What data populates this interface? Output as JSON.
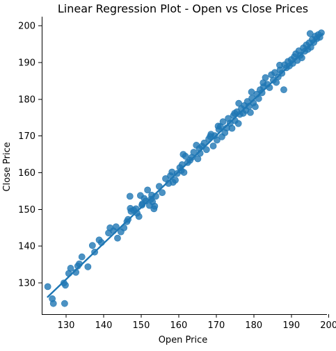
{
  "chart_data": {
    "type": "scatter",
    "title": "Linear Regression Plot - Open vs Close Prices",
    "xlabel": "Open Price",
    "ylabel": "Close Price",
    "xlim": [
      123.5,
      199.5
    ],
    "ylim": [
      121.5,
      202.5
    ],
    "x_ticks": [
      130,
      140,
      150,
      160,
      170,
      180,
      190,
      200
    ],
    "y_ticks": [
      130,
      140,
      150,
      160,
      170,
      180,
      190,
      200
    ],
    "grid": false,
    "colors": {
      "points": "#1f77b4",
      "regression_line": "#1f77b4"
    },
    "regression_line": {
      "x": [
        125.1,
        198.3
      ],
      "y": [
        126.2,
        197.8
      ]
    },
    "points": [
      [
        125.1,
        129.0
      ],
      [
        126.3,
        125.7
      ],
      [
        126.6,
        124.4
      ],
      [
        129.4,
        130.0
      ],
      [
        129.6,
        124.4
      ],
      [
        129.8,
        129.4
      ],
      [
        130.7,
        132.6
      ],
      [
        131.2,
        134.0
      ],
      [
        132.6,
        132.9
      ],
      [
        133.1,
        134.6
      ],
      [
        133.5,
        135.2
      ],
      [
        134.2,
        137.1
      ],
      [
        135.8,
        134.4
      ],
      [
        137.0,
        140.2
      ],
      [
        138.8,
        141.7
      ],
      [
        139.4,
        141.0
      ],
      [
        141.3,
        143.6
      ],
      [
        141.7,
        145.0
      ],
      [
        142.6,
        144.2
      ],
      [
        143.3,
        145.3
      ],
      [
        143.7,
        142.2
      ],
      [
        145.4,
        145.0
      ],
      [
        146.2,
        146.7
      ],
      [
        146.5,
        147.3
      ],
      [
        147.0,
        153.6
      ],
      [
        147.1,
        150.3
      ],
      [
        147.3,
        149.5
      ],
      [
        148.0,
        149.8
      ],
      [
        148.6,
        150.2
      ],
      [
        148.9,
        149.0
      ],
      [
        149.4,
        148.1
      ],
      [
        149.8,
        153.8
      ],
      [
        150.3,
        151.5
      ],
      [
        150.8,
        153.0
      ],
      [
        151.2,
        152.3
      ],
      [
        151.7,
        155.3
      ],
      [
        152.2,
        151.1
      ],
      [
        152.6,
        152.8
      ],
      [
        153.0,
        152.1
      ],
      [
        153.4,
        150.2
      ],
      [
        153.6,
        150.9
      ],
      [
        153.9,
        153.6
      ],
      [
        154.8,
        156.3
      ],
      [
        155.6,
        154.6
      ],
      [
        156.5,
        158.4
      ],
      [
        157.3,
        157.1
      ],
      [
        157.8,
        159.2
      ],
      [
        158.5,
        157.4
      ],
      [
        159.1,
        158.0
      ],
      [
        159.6,
        159.8
      ],
      [
        160.3,
        161.4
      ],
      [
        160.7,
        160.6
      ],
      [
        161.4,
        160.1
      ],
      [
        161.2,
        165.0
      ],
      [
        161.8,
        164.5
      ],
      [
        162.4,
        162.8
      ],
      [
        163.0,
        163.4
      ],
      [
        163.5,
        164.2
      ],
      [
        164.0,
        165.6
      ],
      [
        164.7,
        167.5
      ],
      [
        165.1,
        163.8
      ],
      [
        165.7,
        165.3
      ],
      [
        166.2,
        167.2
      ],
      [
        166.8,
        168.1
      ],
      [
        167.4,
        166.3
      ],
      [
        168.0,
        169.2
      ],
      [
        168.6,
        170.5
      ],
      [
        169.2,
        167.3
      ],
      [
        169.6,
        170.1
      ],
      [
        170.2,
        168.9
      ],
      [
        170.7,
        171.8
      ],
      [
        171.1,
        172.6
      ],
      [
        171.5,
        169.8
      ],
      [
        171.8,
        173.9
      ],
      [
        172.3,
        170.9
      ],
      [
        172.8,
        172.2
      ],
      [
        173.2,
        174.8
      ],
      [
        173.7,
        173.5
      ],
      [
        174.2,
        172.1
      ],
      [
        174.6,
        175.6
      ],
      [
        175.0,
        174.2
      ],
      [
        175.5,
        176.6
      ],
      [
        175.9,
        173.4
      ],
      [
        176.3,
        175.9
      ],
      [
        176.7,
        177.5
      ],
      [
        177.2,
        176.2
      ],
      [
        177.5,
        178.3
      ],
      [
        177.9,
        177.0
      ],
      [
        178.3,
        179.4
      ],
      [
        178.7,
        178.1
      ],
      [
        179.1,
        176.4
      ],
      [
        179.5,
        180.3
      ],
      [
        179.9,
        179.0
      ],
      [
        180.4,
        178.0
      ],
      [
        180.8,
        181.4
      ],
      [
        181.3,
        180.2
      ],
      [
        181.7,
        182.6
      ],
      [
        182.2,
        181.8
      ],
      [
        182.6,
        183.4
      ],
      [
        183.1,
        185.9
      ],
      [
        183.6,
        184.1
      ],
      [
        184.2,
        183.2
      ],
      [
        184.7,
        186.7
      ],
      [
        185.2,
        185.2
      ],
      [
        185.6,
        187.3
      ],
      [
        186.0,
        184.6
      ],
      [
        186.5,
        186.1
      ],
      [
        187.0,
        188.0
      ],
      [
        187.5,
        187.1
      ],
      [
        188.0,
        182.6
      ],
      [
        188.2,
        189.4
      ],
      [
        188.7,
        188.6
      ],
      [
        189.1,
        190.3
      ],
      [
        189.5,
        189.1
      ],
      [
        190.0,
        190.8
      ],
      [
        190.4,
        189.8
      ],
      [
        190.8,
        191.6
      ],
      [
        191.2,
        192.4
      ],
      [
        191.6,
        190.6
      ],
      [
        192.0,
        193.2
      ],
      [
        192.4,
        192.0
      ],
      [
        192.8,
        191.3
      ],
      [
        193.2,
        194.0
      ],
      [
        193.6,
        193.1
      ],
      [
        194.0,
        194.8
      ],
      [
        194.4,
        193.6
      ],
      [
        194.8,
        195.4
      ],
      [
        195.2,
        194.2
      ],
      [
        195.6,
        196.3
      ],
      [
        196.0,
        195.5
      ],
      [
        196.4,
        197.2
      ],
      [
        196.8,
        196.5
      ],
      [
        197.2,
        197.6
      ],
      [
        197.6,
        196.9
      ],
      [
        198.0,
        198.1
      ],
      [
        195.0,
        197.9
      ],
      [
        182.5,
        184.5
      ],
      [
        176.0,
        178.9
      ],
      [
        170.5,
        172.7
      ],
      [
        165.5,
        166.6
      ],
      [
        158.2,
        160.2
      ],
      [
        150.2,
        151.2
      ],
      [
        144.6,
        143.9
      ],
      [
        137.6,
        138.4
      ],
      [
        152.8,
        153.9
      ],
      [
        160.9,
        162.2
      ],
      [
        168.4,
        169.9
      ],
      [
        174.9,
        176.2
      ],
      [
        179.4,
        182.0
      ],
      [
        186.9,
        189.3
      ]
    ]
  }
}
